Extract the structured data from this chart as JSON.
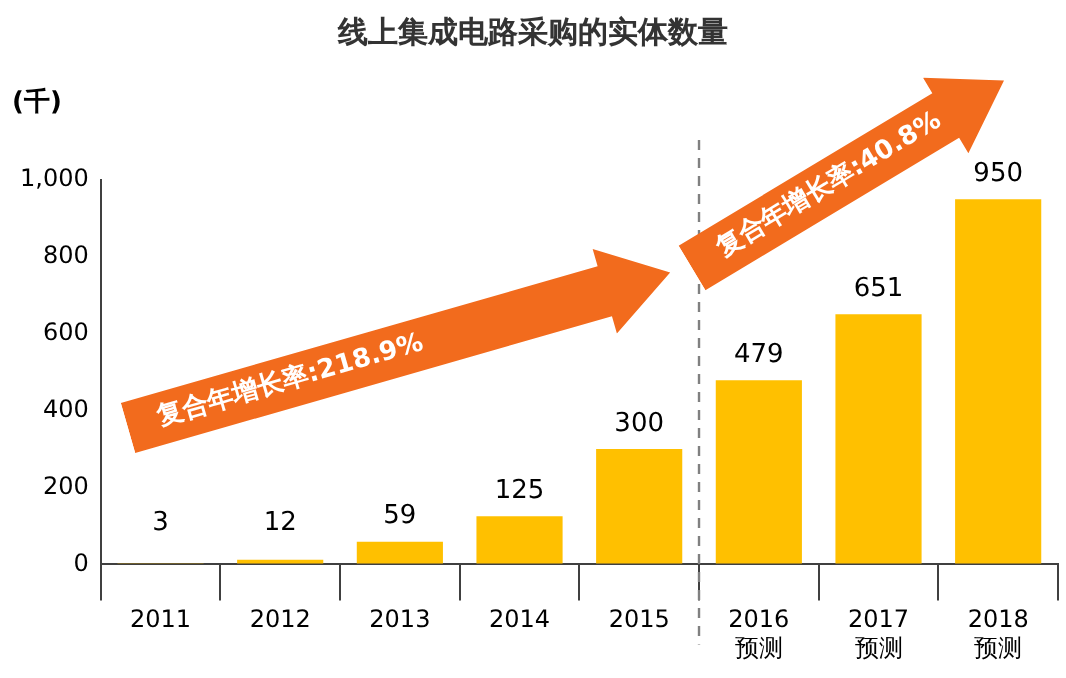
{
  "chart_data": {
    "type": "bar",
    "title": "线上集成电路采购的实体数量",
    "ylabel": "(千)",
    "categories": [
      "2011",
      "2012",
      "2013",
      "2014",
      "2015",
      "2016\n预测",
      "2017\n预测",
      "2018\n预测"
    ],
    "values": [
      3,
      12,
      59,
      125,
      300,
      479,
      651,
      950
    ],
    "color": "#ffc000",
    "ylim": [
      0,
      1000
    ],
    "yticks": [
      0,
      200,
      400,
      600,
      800,
      {
        "value": 1000,
        "label": "1,000"
      }
    ],
    "grid": false,
    "legend": false,
    "data_labels": true,
    "annotations": [
      "复合年增长率:218.9%",
      "复合年增长率:40.8%"
    ]
  }
}
